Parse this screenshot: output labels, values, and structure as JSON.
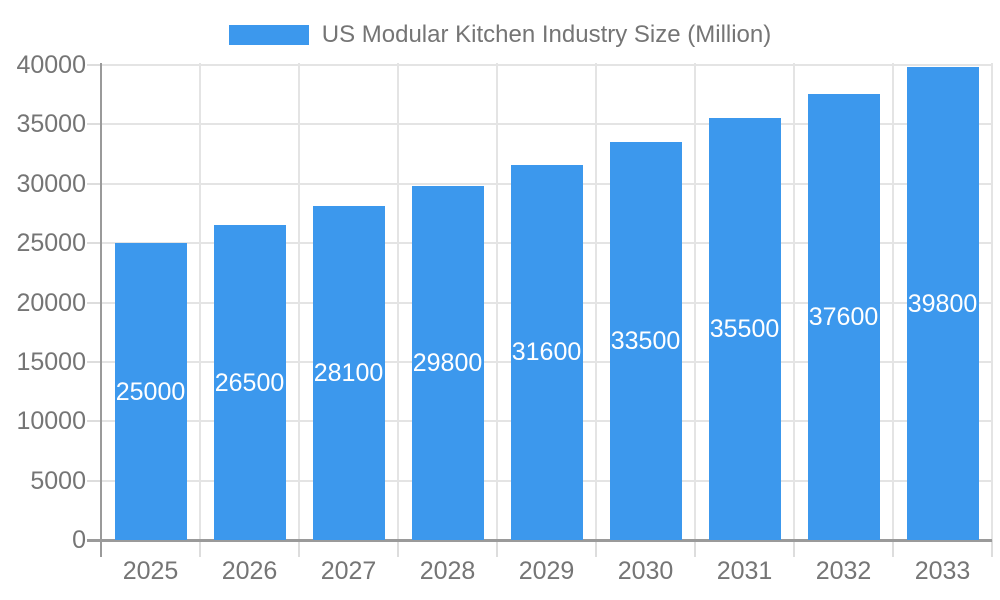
{
  "chart_data": {
    "type": "bar",
    "title": "US Modular Kitchen Industry Size (Million)",
    "categories": [
      "2025",
      "2026",
      "2027",
      "2028",
      "2029",
      "2030",
      "2031",
      "2032",
      "2033"
    ],
    "values": [
      25000,
      26500,
      28100,
      29800,
      31600,
      33500,
      35500,
      37600,
      39800
    ],
    "xlabel": "",
    "ylabel": "",
    "ylim": [
      0,
      40000
    ],
    "ytick_step": 5000,
    "ytick_labels": [
      "0",
      "5000",
      "10000",
      "15000",
      "20000",
      "25000",
      "30000",
      "35000",
      "40000"
    ],
    "grid": true,
    "vertical_grid": true,
    "legend_position": "top",
    "bar_value_labels": "inside-middle",
    "colors": {
      "bar": "#3C98ED",
      "bar_label_text": "#FFFFFF",
      "axis_text": "#757575",
      "legend_text": "#757575",
      "gridline": "#E4E4E4",
      "tick": "#DDDDDD",
      "axis_line": "#9A9A9A",
      "background": "#FFFFFF"
    }
  }
}
